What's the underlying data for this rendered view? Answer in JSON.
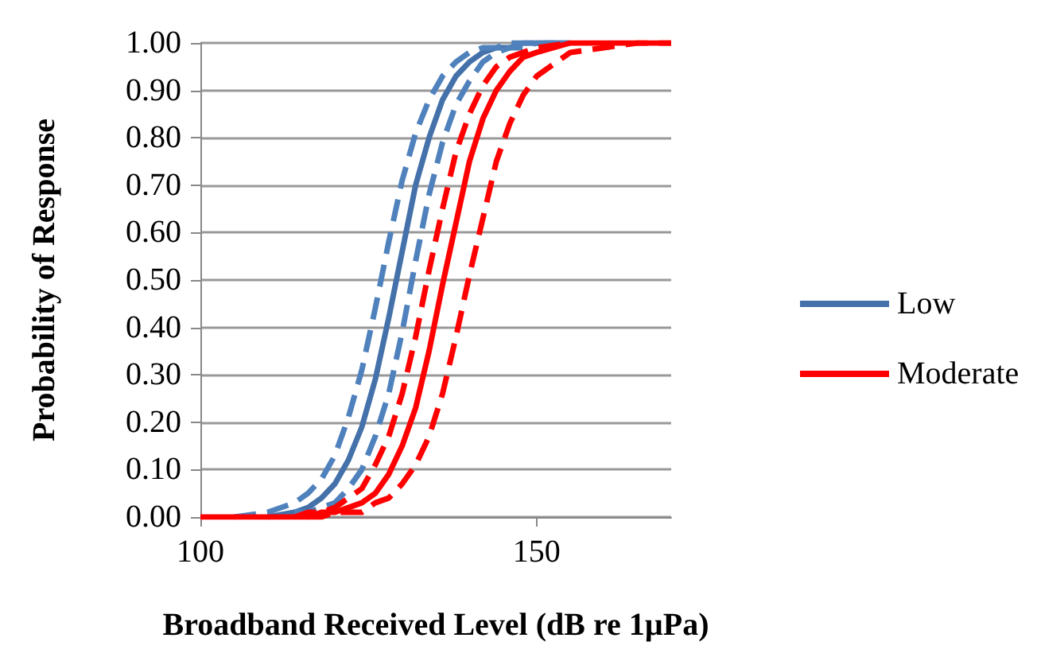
{
  "chart_data": {
    "type": "line",
    "xlabel": "Broadband Received Level (dB re 1µPa)",
    "ylabel": "Probability of Response",
    "x": [
      100,
      105,
      110,
      114,
      116,
      118,
      120,
      122,
      124,
      126,
      128,
      130,
      132,
      134,
      136,
      138,
      140,
      142,
      144,
      146,
      148,
      150,
      155,
      160,
      165,
      170
    ],
    "series": [
      {
        "name": "Low",
        "color": "#4471a9",
        "line_style": "solid",
        "values": [
          null,
          null,
          0,
          0.01,
          0.02,
          0.04,
          0.07,
          0.12,
          0.19,
          0.29,
          0.42,
          0.56,
          0.7,
          0.8,
          0.88,
          0.93,
          0.96,
          0.98,
          0.99,
          0.99,
          1,
          1,
          1,
          null,
          null,
          null
        ]
      },
      {
        "color": "#4f81bd",
        "line_style": "dashed",
        "values": [
          null,
          0,
          0.01,
          0.03,
          0.05,
          0.08,
          0.13,
          0.21,
          0.31,
          0.44,
          0.58,
          0.71,
          0.81,
          0.88,
          0.93,
          0.96,
          0.98,
          0.99,
          0.99,
          1,
          1,
          1,
          1,
          null,
          null,
          null
        ]
      },
      {
        "color": "#4f81bd",
        "line_style": "dashed",
        "values": [
          null,
          null,
          null,
          0.01,
          0.01,
          0.02,
          0.03,
          0.06,
          0.1,
          0.17,
          0.26,
          0.39,
          0.54,
          0.68,
          0.79,
          0.87,
          0.92,
          0.96,
          0.98,
          0.99,
          0.99,
          1,
          1,
          null,
          null,
          null
        ]
      },
      {
        "name": "Moderate",
        "color": "#ff0000",
        "line_style": "solid",
        "values": [
          0,
          0,
          0,
          0,
          0,
          0.01,
          0.01,
          0.02,
          0.03,
          0.05,
          0.09,
          0.15,
          0.23,
          0.35,
          0.49,
          0.62,
          0.75,
          0.84,
          0.9,
          0.94,
          0.97,
          0.98,
          1,
          1,
          1,
          1
        ]
      },
      {
        "color": "#ff0000",
        "line_style": "dashed",
        "values": [
          null,
          null,
          null,
          0,
          0.01,
          0.01,
          0.02,
          0.04,
          0.06,
          0.11,
          0.17,
          0.26,
          0.38,
          0.52,
          0.65,
          0.77,
          0.85,
          0.91,
          0.95,
          0.97,
          0.98,
          0.99,
          1,
          null,
          null,
          null
        ]
      },
      {
        "color": "#ff0000",
        "line_style": "dashed",
        "values": [
          null,
          null,
          null,
          null,
          0,
          0,
          0.01,
          0.01,
          0.01,
          0.03,
          0.04,
          0.07,
          0.11,
          0.17,
          0.26,
          0.38,
          0.51,
          0.63,
          0.75,
          0.83,
          0.89,
          0.93,
          0.98,
          0.99,
          1,
          1
        ]
      }
    ],
    "xlim": [
      100,
      170
    ],
    "xticks": [
      100,
      150
    ],
    "ylim": [
      0,
      1
    ],
    "yticks": [
      {
        "value": 0,
        "label": "0.00"
      },
      {
        "value": 0.1,
        "label": "0.10"
      },
      {
        "value": 0.2,
        "label": "0.20"
      },
      {
        "value": 0.3,
        "label": "0.30"
      },
      {
        "value": 0.4,
        "label": "0.40"
      },
      {
        "value": 0.5,
        "label": "0.50"
      },
      {
        "value": 0.6,
        "label": "0.60"
      },
      {
        "value": 0.7,
        "label": "0.70"
      },
      {
        "value": 0.8,
        "label": "0.80"
      },
      {
        "value": 0.9,
        "label": "0.90"
      },
      {
        "value": 1,
        "label": "1.00"
      }
    ],
    "grid": "y",
    "legend": "right",
    "marker": "none"
  }
}
